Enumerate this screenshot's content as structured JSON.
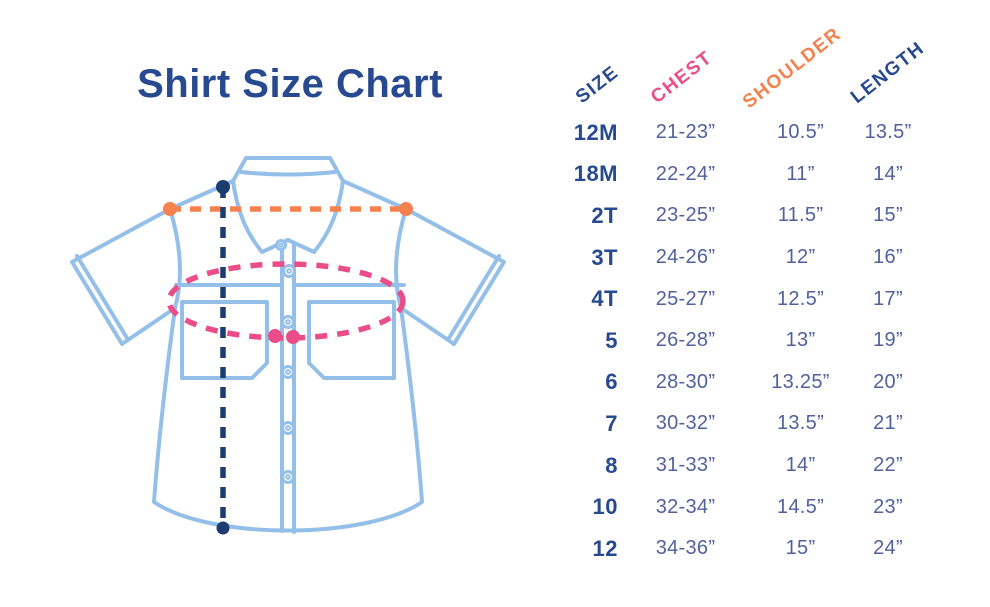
{
  "title": "Shirt Size Chart",
  "colors": {
    "navy": "#27498F",
    "navy-dark": "#1D3C70",
    "value-blue": "#51619E",
    "pink": "#EA4D88",
    "orange": "#F5824E",
    "light-blue": "#93BFE8",
    "bg": "#FFFFFF"
  },
  "diagram": {
    "measurements": [
      {
        "name": "shoulder",
        "style": "dashed-line",
        "color": "#F5824E"
      },
      {
        "name": "chest",
        "style": "dashed-ellipse",
        "color": "#EA4D88"
      },
      {
        "name": "length",
        "style": "dashed-line",
        "color": "#1D3C70"
      }
    ]
  },
  "table": {
    "headers": [
      {
        "id": "size",
        "label": "SIZE",
        "color": "#27498F"
      },
      {
        "id": "chest",
        "label": "CHEST",
        "color": "#EA4D88"
      },
      {
        "id": "shoulder",
        "label": "SHOULDER",
        "color": "#F5824E"
      },
      {
        "id": "length",
        "label": "LENGTH",
        "color": "#27498F"
      }
    ],
    "rows": [
      {
        "size": "12M",
        "chest": "21-23”",
        "shoulder": "10.5”",
        "length": "13.5”"
      },
      {
        "size": "18M",
        "chest": "22-24”",
        "shoulder": "11”",
        "length": "14”"
      },
      {
        "size": "2T",
        "chest": "23-25”",
        "shoulder": "11.5”",
        "length": "15”"
      },
      {
        "size": "3T",
        "chest": "24-26”",
        "shoulder": "12”",
        "length": "16”"
      },
      {
        "size": "4T",
        "chest": "25-27”",
        "shoulder": "12.5”",
        "length": "17”"
      },
      {
        "size": "5",
        "chest": "26-28”",
        "shoulder": "13”",
        "length": "19”"
      },
      {
        "size": "6",
        "chest": "28-30”",
        "shoulder": "13.25”",
        "length": "20”"
      },
      {
        "size": "7",
        "chest": "30-32”",
        "shoulder": "13.5”",
        "length": "21”"
      },
      {
        "size": "8",
        "chest": "31-33”",
        "shoulder": "14”",
        "length": "22”"
      },
      {
        "size": "10",
        "chest": "32-34”",
        "shoulder": "14.5”",
        "length": "23”"
      },
      {
        "size": "12",
        "chest": "34-36”",
        "shoulder": "15”",
        "length": "24”"
      }
    ]
  }
}
